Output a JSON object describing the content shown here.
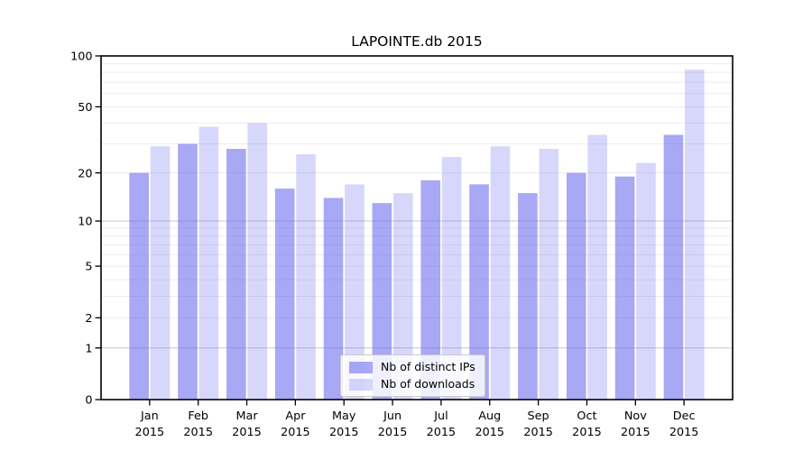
{
  "chart_data": {
    "type": "bar",
    "title": "LAPOINTE.db 2015",
    "categories": [
      "Jan 2015",
      "Feb 2015",
      "Mar 2015",
      "Apr 2015",
      "May 2015",
      "Jun 2015",
      "Jul 2015",
      "Aug 2015",
      "Sep 2015",
      "Oct 2015",
      "Nov 2015",
      "Dec 2015"
    ],
    "months": [
      "Jan",
      "Feb",
      "Mar",
      "Apr",
      "May",
      "Jun",
      "Jul",
      "Aug",
      "Sep",
      "Oct",
      "Nov",
      "Dec"
    ],
    "year": "2015",
    "series": [
      {
        "name": "Nb of distinct IPs",
        "color": "rgba(102,102,238,0.57)",
        "values": [
          20,
          30,
          28,
          16,
          14,
          13,
          18,
          17,
          15,
          20,
          19,
          34
        ]
      },
      {
        "name": "Nb of downloads",
        "color": "rgba(102,102,238,0.26)",
        "values": [
          29,
          38,
          40,
          26,
          17,
          15,
          25,
          29,
          28,
          34,
          23,
          83
        ]
      }
    ],
    "xlabel": "",
    "ylabel": "",
    "yscale": "symlog (position ~ ln(1+v))",
    "ylim": [
      0,
      100
    ],
    "ytick_values": [
      0,
      1,
      2,
      5,
      10,
      20,
      50,
      100
    ],
    "ytick_labels": [
      "0",
      "1",
      "2",
      "5",
      "10",
      "20",
      "50",
      "100"
    ],
    "major_gridlines": [
      1,
      10,
      100
    ],
    "minor_gridlines": [
      2,
      3,
      4,
      5,
      6,
      7,
      8,
      9,
      20,
      30,
      40,
      50,
      60,
      70,
      80,
      90
    ],
    "grid": true,
    "legend_position": "lower center",
    "colors": {
      "background": "#ffffff",
      "spine": "#000000",
      "text": "#000000",
      "major_grid": "#c9c9c9",
      "minor_grid": "#ededed"
    }
  }
}
